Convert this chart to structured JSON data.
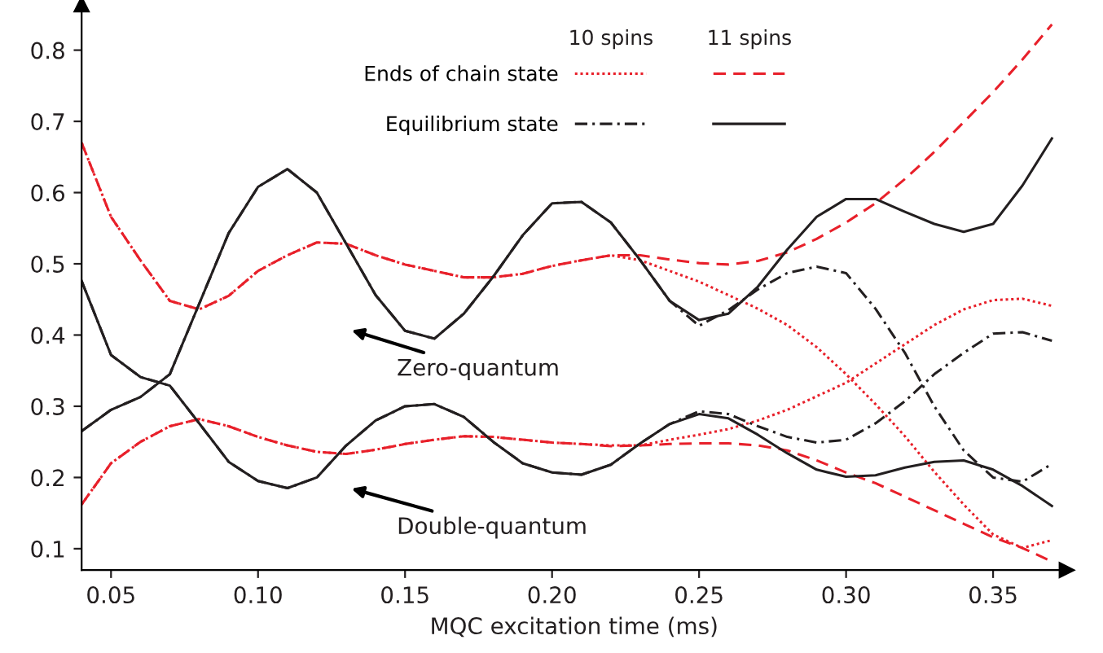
{
  "chart_data": {
    "type": "line",
    "xlabel": "MQC excitation time (ms)",
    "x": [
      0.04,
      0.05,
      0.06,
      0.07,
      0.08,
      0.09,
      0.1,
      0.11,
      0.12,
      0.13,
      0.14,
      0.15,
      0.16,
      0.17,
      0.18,
      0.19,
      0.2,
      0.21,
      0.22,
      0.23,
      0.24,
      0.25,
      0.26,
      0.27,
      0.28,
      0.29,
      0.3,
      0.31,
      0.32,
      0.33,
      0.34,
      0.35,
      0.36,
      0.37
    ],
    "series": [
      {
        "name": "Ends of chain state",
        "color": "#e8202a",
        "line_style": "dotted",
        "values": [
          0.67,
          0.566,
          0.505,
          0.448,
          0.436,
          0.455,
          0.49,
          0.512,
          0.53,
          0.528,
          0.512,
          0.499,
          0.49,
          0.481,
          0.481,
          0.486,
          0.497,
          0.505,
          0.512,
          0.505,
          0.49,
          0.475,
          0.456,
          0.437,
          0.414,
          0.383,
          0.345,
          0.303,
          0.258,
          0.208,
          0.162,
          0.12,
          0.101,
          0.112
        ]
      },
      {
        "color": "#e8202a",
        "line_style": "dotted",
        "values": [
          0.162,
          0.22,
          0.25,
          0.272,
          0.282,
          0.272,
          0.257,
          0.245,
          0.236,
          0.233,
          0.239,
          0.247,
          0.253,
          0.258,
          0.257,
          0.253,
          0.249,
          0.247,
          0.245,
          0.245,
          0.253,
          0.26,
          0.268,
          0.28,
          0.295,
          0.314,
          0.333,
          0.36,
          0.387,
          0.414,
          0.436,
          0.449,
          0.451,
          0.441
        ]
      },
      {
        "color": "#e8202a",
        "line_style": "dashed",
        "values": [
          0.67,
          0.566,
          0.505,
          0.448,
          0.436,
          0.455,
          0.49,
          0.512,
          0.53,
          0.528,
          0.512,
          0.499,
          0.49,
          0.481,
          0.481,
          0.486,
          0.497,
          0.505,
          0.512,
          0.512,
          0.506,
          0.501,
          0.499,
          0.504,
          0.516,
          0.535,
          0.558,
          0.585,
          0.619,
          0.657,
          0.699,
          0.741,
          0.787,
          0.836
        ]
      },
      {
        "color": "#e8202a",
        "line_style": "dashed",
        "values": [
          0.162,
          0.22,
          0.25,
          0.272,
          0.282,
          0.272,
          0.257,
          0.245,
          0.236,
          0.233,
          0.239,
          0.247,
          0.253,
          0.258,
          0.257,
          0.253,
          0.249,
          0.247,
          0.244,
          0.245,
          0.247,
          0.248,
          0.248,
          0.245,
          0.238,
          0.224,
          0.207,
          0.192,
          0.173,
          0.154,
          0.135,
          0.116,
          0.101,
          0.082
        ]
      },
      {
        "name": "Equilibrium state",
        "color": "#231f20",
        "line_style": "dashdot",
        "values": [
          0.265,
          0.295,
          0.313,
          0.345,
          0.444,
          0.543,
          0.608,
          0.633,
          0.6,
          0.528,
          0.456,
          0.406,
          0.395,
          0.43,
          0.482,
          0.54,
          0.585,
          0.587,
          0.558,
          0.505,
          0.448,
          0.413,
          0.435,
          0.464,
          0.487,
          0.496,
          0.487,
          0.437,
          0.375,
          0.3,
          0.238,
          0.2,
          0.194,
          0.219
        ]
      },
      {
        "color": "#231f20",
        "line_style": "dashdot",
        "values": [
          0.476,
          0.372,
          0.341,
          0.329,
          0.276,
          0.222,
          0.195,
          0.185,
          0.2,
          0.245,
          0.28,
          0.3,
          0.303,
          0.285,
          0.25,
          0.22,
          0.207,
          0.204,
          0.218,
          0.248,
          0.275,
          0.293,
          0.289,
          0.272,
          0.257,
          0.249,
          0.253,
          0.276,
          0.307,
          0.345,
          0.375,
          0.402,
          0.404,
          0.392
        ]
      },
      {
        "color": "#231f20",
        "line_style": "solid",
        "values": [
          0.265,
          0.295,
          0.313,
          0.345,
          0.444,
          0.543,
          0.608,
          0.633,
          0.6,
          0.528,
          0.456,
          0.406,
          0.395,
          0.43,
          0.482,
          0.54,
          0.585,
          0.587,
          0.558,
          0.505,
          0.448,
          0.421,
          0.43,
          0.468,
          0.52,
          0.566,
          0.591,
          0.591,
          0.573,
          0.556,
          0.545,
          0.556,
          0.61,
          0.676
        ]
      },
      {
        "color": "#231f20",
        "line_style": "solid",
        "values": [
          0.476,
          0.372,
          0.341,
          0.329,
          0.276,
          0.222,
          0.195,
          0.185,
          0.2,
          0.245,
          0.28,
          0.3,
          0.303,
          0.285,
          0.25,
          0.22,
          0.207,
          0.204,
          0.218,
          0.248,
          0.275,
          0.289,
          0.283,
          0.26,
          0.234,
          0.211,
          0.201,
          0.203,
          0.214,
          0.222,
          0.224,
          0.211,
          0.188,
          0.16
        ]
      }
    ],
    "annotations": [
      "10 spins",
      "11 spins",
      "Zero-quantum",
      "Double-quantum"
    ],
    "xlim": [
      0.04,
      0.375
    ],
    "ylim": [
      0.07,
      0.864
    ],
    "xticks": [
      0.05,
      {
        "value": 0.1,
        "label": "0.10"
      },
      0.15,
      {
        "value": 0.2,
        "label": "0.20"
      },
      0.25,
      {
        "value": 0.3,
        "label": "0.30"
      },
      0.35
    ],
    "yticks": [
      0.1,
      0.2,
      0.3,
      0.4,
      0.5,
      0.6,
      0.7,
      0.8
    ],
    "grid": false,
    "legend": "top"
  }
}
